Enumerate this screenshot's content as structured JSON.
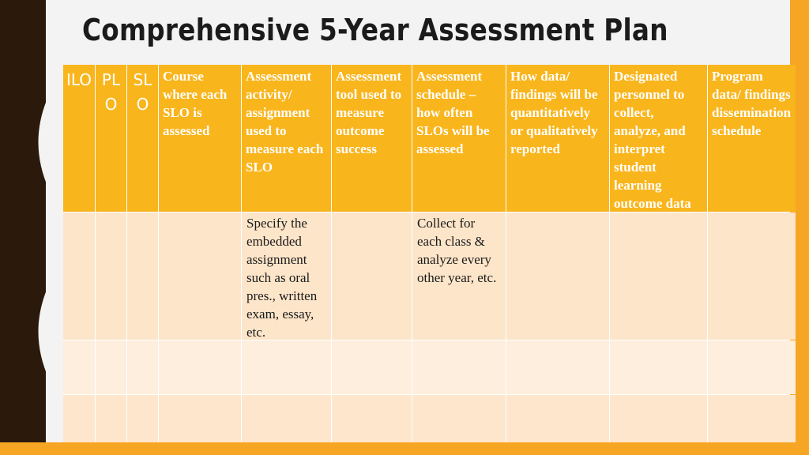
{
  "slide": {
    "title": "Comprehensive 5-Year Assessment Plan",
    "colors": {
      "accent": "#f9b51c",
      "dark": "#2b1a0b",
      "row_light": "#fde5c9"
    }
  },
  "table": {
    "headers": [
      "ILO",
      "PLO",
      "SLO",
      "Course where each SLO is assessed",
      "Assessment activity/ assignment used to measure each SLO",
      "Assessment tool used to measure outcome success",
      "Assessment schedule – how often SLOs will be assessed",
      "How data/ findings will be quantitatively or qualitatively reported",
      "Designated personnel to collect, analyze, and interpret student learning outcome data",
      "Program data/ findings dissemination schedule"
    ],
    "rows": [
      [
        "",
        "",
        "",
        "",
        "Specify the embedded assignment such as oral pres., written exam, essay, etc.",
        "",
        "Collect for each class & analyze every other year, etc.",
        "",
        "",
        ""
      ],
      [
        "",
        "",
        "",
        "",
        "",
        "",
        "",
        "",
        "",
        ""
      ],
      [
        "",
        "",
        "",
        "",
        "",
        "",
        "",
        "",
        "",
        ""
      ]
    ]
  }
}
